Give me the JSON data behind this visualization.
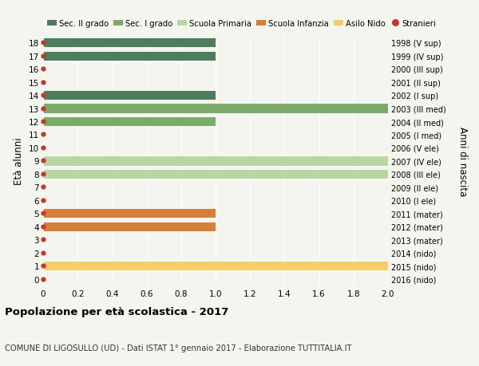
{
  "ages": [
    18,
    17,
    16,
    15,
    14,
    13,
    12,
    11,
    10,
    9,
    8,
    7,
    6,
    5,
    4,
    3,
    2,
    1,
    0
  ],
  "right_labels": [
    "1998 (V sup)",
    "1999 (IV sup)",
    "2000 (III sup)",
    "2001 (II sup)",
    "2002 (I sup)",
    "2003 (III med)",
    "2004 (II med)",
    "2005 (I med)",
    "2006 (V ele)",
    "2007 (IV ele)",
    "2008 (III ele)",
    "2009 (II ele)",
    "2010 (I ele)",
    "2011 (mater)",
    "2012 (mater)",
    "2013 (mater)",
    "2014 (nido)",
    "2015 (nido)",
    "2016 (nido)"
  ],
  "bars": [
    {
      "age": 18,
      "value": 1.0,
      "color": "#4e7d5b"
    },
    {
      "age": 17,
      "value": 1.0,
      "color": "#4e7d5b"
    },
    {
      "age": 14,
      "value": 1.0,
      "color": "#4e7d5b"
    },
    {
      "age": 13,
      "value": 2.0,
      "color": "#7daa6a"
    },
    {
      "age": 12,
      "value": 1.0,
      "color": "#7daa6a"
    },
    {
      "age": 9,
      "value": 2.0,
      "color": "#bad4a3"
    },
    {
      "age": 8,
      "value": 2.0,
      "color": "#bad4a3"
    },
    {
      "age": 5,
      "value": 1.0,
      "color": "#d47f3a"
    },
    {
      "age": 4,
      "value": 1.0,
      "color": "#d47f3a"
    },
    {
      "age": 1,
      "value": 2.0,
      "color": "#f5cc6e"
    }
  ],
  "stranieri_dots": [
    18,
    17,
    16,
    15,
    14,
    13,
    12,
    11,
    10,
    9,
    8,
    7,
    6,
    5,
    4,
    3,
    2,
    1,
    0
  ],
  "legend": [
    {
      "label": "Sec. II grado",
      "color": "#4e7d5b"
    },
    {
      "label": "Sec. I grado",
      "color": "#7daa6a"
    },
    {
      "label": "Scuola Primaria",
      "color": "#bad4a3"
    },
    {
      "label": "Scuola Infanzia",
      "color": "#d47f3a"
    },
    {
      "label": "Asilo Nido",
      "color": "#f5cc6e"
    },
    {
      "label": "Stranieri",
      "color": "#c0392b"
    }
  ],
  "ylabel_left": "Età alunni",
  "ylabel_right": "Anni di nascita",
  "title": "Popolazione per età scolastica - 2017",
  "subtitle": "COMUNE DI LIGOSULLO (UD) - Dati ISTAT 1° gennaio 2017 - Elaborazione TUTTITALIA.IT",
  "xlim": [
    0,
    2.0
  ],
  "xticks": [
    0,
    0.2,
    0.4,
    0.6,
    0.8,
    1.0,
    1.2,
    1.4,
    1.6,
    1.8,
    2.0
  ],
  "xtick_labels": [
    "0",
    "0.2",
    "0.4",
    "0.6",
    "0.8",
    "1.0",
    "1.2",
    "1.4",
    "1.6",
    "1.8",
    "2.0"
  ],
  "background_color": "#f5f5ef",
  "bar_height": 0.75
}
